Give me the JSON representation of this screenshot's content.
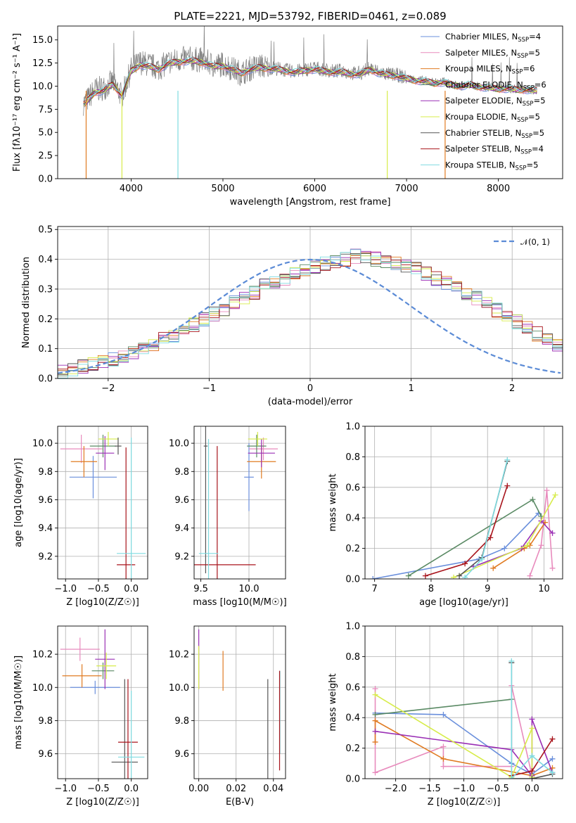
{
  "figure": {
    "title": "PLATE=2221, MJD=53792, FIBERID=0461, z=0.089"
  },
  "models": [
    {
      "label": "Chabrier MILES, N$_{SSP}$=4",
      "text": "Chabrier MILES, N",
      "sub": "SSP",
      "n": "=4",
      "color": "#6a8fdc"
    },
    {
      "label": "Salpeter MILES, N$_{SSP}$=5",
      "text": "Salpeter MILES, N",
      "sub": "SSP",
      "n": "=5",
      "color": "#e88bbd"
    },
    {
      "label": "Kroupa MILES, N$_{SSP}$=6",
      "text": "Kroupa MILES, N",
      "sub": "SSP",
      "n": "=6",
      "color": "#e07b22"
    },
    {
      "label": "Chabrier ELODIE, N$_{SSP}$=6",
      "text": "Chabrier ELODIE, N",
      "sub": "SSP",
      "n": "=6",
      "color": "#5a8a64"
    },
    {
      "label": "Salpeter ELODIE, N$_{SSP}$=5",
      "text": "Salpeter ELODIE, N",
      "sub": "SSP",
      "n": "=5",
      "color": "#9a2fb5"
    },
    {
      "label": "Kroupa ELODIE, N$_{SSP}$=5",
      "text": "Kroupa ELODIE, N",
      "sub": "SSP",
      "n": "=5",
      "color": "#d7ec4a"
    },
    {
      "label": "Chabrier STELIB, N$_{SSP}$=5",
      "text": "Chabrier STELIB, N",
      "sub": "SSP",
      "n": "=5",
      "color": "#555555"
    },
    {
      "label": "Salpeter STELIB, N$_{SSP}$=4",
      "text": "Salpeter STELIB, N",
      "sub": "SSP",
      "n": "=4",
      "color": "#a8141c"
    },
    {
      "label": "Kroupa STELIB, N$_{SSP}$=5",
      "text": "Kroupa STELIB, N",
      "sub": "SSP",
      "n": "=5",
      "color": "#7fdbe0"
    }
  ],
  "chart_data": [
    {
      "id": "spectrum",
      "type": "line",
      "xlabel": "wavelength [Angstrom, rest frame]",
      "ylabel": "Flux [f$_\\lambda$10$^{-17}$ erg cm$^{-2}$ s$^{-1}$ A$^{-1}$]",
      "xlim": [
        3200,
        8700
      ],
      "ylim": [
        0,
        16.5
      ],
      "xticks": [
        4000,
        5000,
        6000,
        7000,
        8000
      ],
      "yticks": [
        0.0,
        2.5,
        5.0,
        7.5,
        10.0,
        12.5,
        15.0
      ],
      "data_color": "#808080",
      "data_series": {
        "name": "data",
        "x": [
          3500,
          3600,
          3700,
          3800,
          3900,
          4000,
          4100,
          4200,
          4300,
          4400,
          4500,
          4600,
          4700,
          4800,
          4900,
          5000,
          5100,
          5200,
          5300,
          5400,
          5500,
          5600,
          5700,
          5800,
          5900,
          6000,
          6100,
          6200,
          6300,
          6400,
          6500,
          6600,
          6700,
          6800,
          6900,
          7000,
          7100,
          7200,
          7300,
          7400,
          7500,
          7600,
          7700,
          7800,
          7900,
          8000,
          8100,
          8200,
          8300,
          8400
        ],
        "y": [
          8.2,
          9.6,
          9.8,
          10.5,
          8.9,
          11.8,
          12.6,
          12.3,
          11.9,
          12.6,
          12.8,
          13.0,
          12.9,
          12.8,
          12.2,
          12.4,
          11.9,
          11.4,
          11.9,
          12.2,
          12.0,
          11.9,
          11.7,
          11.6,
          11.8,
          12.0,
          11.8,
          11.6,
          11.7,
          11.4,
          11.4,
          12.0,
          11.5,
          11.3,
          11.2,
          10.9,
          10.7,
          10.6,
          10.4,
          10.5,
          10.1,
          10.0,
          10.2,
          9.9,
          9.9,
          9.8,
          9.7,
          9.7,
          9.6,
          9.6
        ]
      },
      "model_series_y": [
        8.1,
        9.3,
        9.5,
        10.2,
        9.0,
        11.6,
        12.3,
        12.1,
        11.8,
        12.4,
        12.6,
        12.7,
        12.7,
        12.5,
        12.1,
        12.2,
        11.8,
        11.4,
        11.8,
        12.0,
        11.9,
        11.8,
        11.6,
        11.5,
        11.7,
        11.8,
        11.6,
        11.5,
        11.5,
        11.3,
        11.3,
        11.8,
        11.4,
        11.2,
        11.1,
        10.8,
        10.6,
        10.5,
        10.3,
        10.4,
        10.1,
        10.0,
        10.1,
        9.9,
        9.8,
        9.7,
        9.7,
        9.6,
        9.6,
        9.5
      ],
      "legend_position": "upper right"
    },
    {
      "id": "residuals",
      "type": "line",
      "xlabel": "(data-model)/error",
      "ylabel": "Normed distribution",
      "xlim": [
        -2.5,
        2.5
      ],
      "ylim": [
        0,
        0.51
      ],
      "xticks": [
        -2,
        -1,
        0,
        1,
        2
      ],
      "yticks": [
        0.0,
        0.1,
        0.2,
        0.3,
        0.4,
        0.5
      ],
      "bin_edges_start": -2.5,
      "bin_width": 0.1,
      "hist_base": [
        0.025,
        0.03,
        0.04,
        0.05,
        0.055,
        0.065,
        0.075,
        0.09,
        0.1,
        0.115,
        0.13,
        0.145,
        0.16,
        0.18,
        0.2,
        0.215,
        0.235,
        0.255,
        0.27,
        0.29,
        0.31,
        0.325,
        0.335,
        0.35,
        0.36,
        0.375,
        0.385,
        0.39,
        0.4,
        0.41,
        0.405,
        0.4,
        0.395,
        0.39,
        0.375,
        0.365,
        0.35,
        0.335,
        0.32,
        0.305,
        0.285,
        0.27,
        0.25,
        0.23,
        0.21,
        0.19,
        0.17,
        0.15,
        0.135,
        0.115,
        0.1
      ],
      "normal_curve": {
        "name": "$\\mathcal{N}(0, 1)$",
        "label": "𝒩(0, 1)",
        "color": "#5b8bd6",
        "mean": 0,
        "sigma": 1
      },
      "legend_position": "upper right"
    },
    {
      "id": "age_vs_Z",
      "type": "scatter",
      "xlabel": "Z [log$_{10}$(Z/Z$_\\odot$)]",
      "ylabel": "age  [log$_{10}$(age/yr)]",
      "xlim": [
        -1.12,
        0.25
      ],
      "ylim": [
        9.04,
        10.12
      ],
      "xticks": [
        -1.0,
        -0.5,
        0.0
      ],
      "yticks": [
        9.2,
        9.4,
        9.6,
        9.8,
        10.0
      ],
      "points": [
        {
          "x": -0.58,
          "y": 9.76,
          "xerr": 0.36,
          "yerr": 0.15
        },
        {
          "x": -0.76,
          "y": 9.96,
          "xerr": 0.32,
          "yerr": 0.1
        },
        {
          "x": -0.72,
          "y": 9.87,
          "xerr": 0.2,
          "yerr": 0.11
        },
        {
          "x": -0.43,
          "y": 9.98,
          "xerr": 0.2,
          "yerr": 0.08
        },
        {
          "x": -0.4,
          "y": 9.93,
          "xerr": 0.14,
          "yerr": 0.12
        },
        {
          "x": -0.35,
          "y": 10.03,
          "xerr": 0.15,
          "yerr": 0.05
        },
        {
          "x": -0.2,
          "y": 9.98,
          "xerr": 0.05,
          "yerr": 0.06
        },
        {
          "x": -0.08,
          "y": 9.14,
          "xerr": 0.14,
          "yerr": 0.83
        },
        {
          "x": 0.0,
          "y": 9.22,
          "xerr": 0.22,
          "yerr": 0.82
        }
      ]
    },
    {
      "id": "age_vs_mass",
      "type": "scatter",
      "xlabel": "mass [log$_{10}$(M/M$_\\odot$)]",
      "ylabel": "",
      "xlim": [
        9.43,
        10.38
      ],
      "ylim": [
        9.04,
        10.12
      ],
      "xticks": [
        9.5,
        10.0
      ],
      "yticks": [
        9.2,
        9.4,
        9.6,
        9.8,
        10.0
      ],
      "points": [
        {
          "x": 10.0,
          "y": 9.76,
          "xerr": 0.05,
          "yerr": 0.24
        },
        {
          "x": 10.15,
          "y": 9.96,
          "xerr": 0.15,
          "yerr": 0.08
        },
        {
          "x": 10.13,
          "y": 9.87,
          "xerr": 0.15,
          "yerr": 0.12
        },
        {
          "x": 10.08,
          "y": 9.98,
          "xerr": 0.1,
          "yerr": 0.08
        },
        {
          "x": 10.13,
          "y": 9.93,
          "xerr": 0.14,
          "yerr": 0.1
        },
        {
          "x": 10.09,
          "y": 10.03,
          "xerr": 0.1,
          "yerr": 0.05
        },
        {
          "x": 9.55,
          "y": 9.98,
          "xerr": 0.02,
          "yerr": 0.9
        },
        {
          "x": 9.67,
          "y": 9.14,
          "xerr": 0.4,
          "yerr": 0.84
        },
        {
          "x": 9.58,
          "y": 9.22,
          "xerr": 0.1,
          "yerr": 0.81
        }
      ]
    },
    {
      "id": "massweight_vs_age",
      "type": "line",
      "xlabel": "age  [log$_{10}$(age/yr)]",
      "ylabel": "mass weight",
      "xlim": [
        6.83,
        10.33
      ],
      "ylim": [
        0,
        1.0
      ],
      "xticks": [
        7,
        8,
        9,
        10
      ],
      "yticks": [
        0.0,
        0.2,
        0.4,
        0.6,
        0.8,
        1.0
      ],
      "series": [
        {
          "x": [
            6.97,
            8.85,
            9.3,
            9.9
          ],
          "y": [
            0.0,
            0.13,
            0.2,
            0.43
          ]
        },
        {
          "x": [
            9.75,
            9.95,
            10.05,
            10.15
          ],
          "y": [
            0.02,
            0.22,
            0.58,
            0.07
          ]
        },
        {
          "x": [
            9.1,
            9.65,
            9.75,
            10.02
          ],
          "y": [
            0.07,
            0.2,
            0.22,
            0.37
          ]
        },
        {
          "x": [
            7.6,
            9.8,
            9.95
          ],
          "y": [
            0.02,
            0.52,
            0.41
          ]
        },
        {
          "x": [
            8.75,
            9.6,
            9.95,
            10.15
          ],
          "y": [
            0.08,
            0.2,
            0.38,
            0.3
          ]
        },
        {
          "x": [
            8.4,
            9.7,
            10.2
          ],
          "y": [
            0.01,
            0.22,
            0.55
          ]
        },
        {
          "x": [
            8.5,
            8.9,
            9.35
          ],
          "y": [
            0.02,
            0.14,
            0.77
          ]
        },
        {
          "x": [
            7.9,
            8.6,
            9.05,
            9.35
          ],
          "y": [
            0.02,
            0.1,
            0.27,
            0.61
          ]
        },
        {
          "x": [
            8.6,
            8.9,
            9.35
          ],
          "y": [
            0.01,
            0.13,
            0.78
          ]
        }
      ]
    },
    {
      "id": "mass_vs_Z",
      "type": "scatter",
      "xlabel": "Z [log$_{10}$(Z/Z$_\\odot$)]",
      "ylabel": "mass [log$_{10}$(M/M$_\\odot$)]",
      "xlim": [
        -1.12,
        0.25
      ],
      "ylim": [
        9.45,
        10.37
      ],
      "xticks": [
        -1.0,
        -0.5,
        0.0
      ],
      "yticks": [
        9.6,
        9.8,
        10.0,
        10.2
      ],
      "points": [
        {
          "x": -0.55,
          "y": 10.0,
          "xerr": 0.38,
          "yerr": 0.04
        },
        {
          "x": -0.78,
          "y": 10.23,
          "xerr": 0.3,
          "yerr": 0.07
        },
        {
          "x": -0.75,
          "y": 10.07,
          "xerr": 0.3,
          "yerr": 0.07
        },
        {
          "x": -0.43,
          "y": 10.1,
          "xerr": 0.17,
          "yerr": 0.05
        },
        {
          "x": -0.4,
          "y": 10.17,
          "xerr": 0.15,
          "yerr": 0.18
        },
        {
          "x": -0.38,
          "y": 10.13,
          "xerr": 0.15,
          "yerr": 0.08
        },
        {
          "x": -0.1,
          "y": 9.55,
          "xerr": 0.2,
          "yerr": 0.5
        },
        {
          "x": -0.05,
          "y": 9.67,
          "xerr": 0.15,
          "yerr": 0.38
        },
        {
          "x": 0.0,
          "y": 9.58,
          "xerr": 0.2,
          "yerr": 0.4
        }
      ]
    },
    {
      "id": "mass_vs_EBV",
      "type": "scatter",
      "xlabel": "E(B-V)",
      "ylabel": "",
      "xlim": [
        -0.0025,
        0.0465
      ],
      "ylim": [
        9.45,
        10.37
      ],
      "xticks": [
        0.0,
        0.02,
        0.04
      ],
      "yticks": [
        9.6,
        9.8,
        10.0,
        10.2
      ],
      "points": [
        {
          "x": 0.0,
          "y": 10.17,
          "xerr": 0.0,
          "yerr": 0.18
        },
        {
          "x": 0.0,
          "y": 10.12,
          "xerr": 0.0,
          "yerr": 0.13
        },
        {
          "x": 0.013,
          "y": 10.1,
          "xerr": 0.0,
          "yerr": 0.12
        },
        {
          "x": 0.037,
          "y": 9.75,
          "xerr": 0.0,
          "yerr": 0.3
        },
        {
          "x": 0.0435,
          "y": 9.85,
          "xerr": 0.0,
          "yerr": 0.25
        },
        {
          "x": 0.0433,
          "y": 9.8,
          "xerr": 0.0,
          "yerr": 0.3
        }
      ]
    },
    {
      "id": "massweight_vs_Z",
      "type": "line",
      "xlabel": "Z [log$_{10}$(Z/Z$_\\odot$)]",
      "ylabel": "mass weight",
      "xlim": [
        -2.45,
        0.45
      ],
      "ylim": [
        0,
        1.0
      ],
      "xticks": [
        -2.0,
        -1.5,
        -1.0,
        -0.5,
        0.0
      ],
      "yticks": [
        0.0,
        0.2,
        0.4,
        0.6,
        0.8,
        1.0
      ],
      "series": [
        {
          "x": [
            -2.3,
            -1.3,
            -0.3,
            0.0,
            0.3
          ],
          "y": [
            0.43,
            0.42,
            0.1,
            0.03,
            0.13
          ]
        },
        {
          "x": [
            -2.3,
            -2.3,
            -1.3,
            -1.3,
            -0.3,
            -0.3,
            0.0
          ],
          "y": [
            0.59,
            0.04,
            0.21,
            0.08,
            0.08,
            0.61,
            0.02
          ]
        },
        {
          "x": [
            -2.3,
            -2.3,
            -1.3,
            0.0,
            0.3
          ],
          "y": [
            0.24,
            0.38,
            0.13,
            0.02,
            0.07
          ]
        },
        {
          "x": [
            -2.3,
            -0.3
          ],
          "y": [
            0.42,
            0.52
          ]
        },
        {
          "x": [
            -2.3,
            -0.3,
            0.0,
            0.0,
            0.3
          ],
          "y": [
            0.31,
            0.19,
            0.02,
            0.39,
            0.04
          ]
        },
        {
          "x": [
            -2.3,
            -0.3,
            0.0,
            0.0
          ],
          "y": [
            0.55,
            0.01,
            0.33,
            0.01
          ]
        },
        {
          "x": [
            -0.3,
            -0.3,
            0.0,
            0.3
          ],
          "y": [
            0.76,
            0.0,
            0.0,
            0.03
          ]
        },
        {
          "x": [
            -0.3,
            0.0,
            0.3
          ],
          "y": [
            0.02,
            0.05,
            0.26
          ]
        },
        {
          "x": [
            -0.3,
            -0.3,
            0.0,
            0.3
          ],
          "y": [
            0.77,
            0.0,
            0.15,
            0.04
          ]
        }
      ]
    }
  ]
}
